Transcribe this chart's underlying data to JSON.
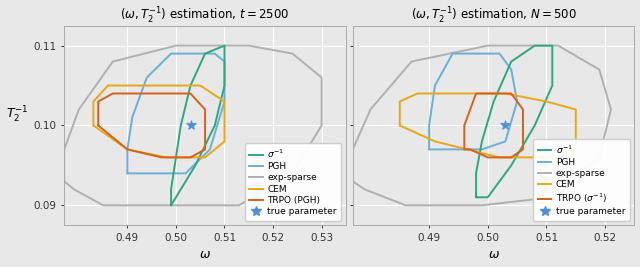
{
  "fig_width": 6.4,
  "fig_height": 2.67,
  "dpi": 100,
  "background_color": "#e8e8e8",
  "title1": "$(\\omega, T_2^{-1})$ estimation, $t = 2500$",
  "title2": "$(\\omega, T_2^{-1})$ estimation, $N = 500$",
  "xlabel": "$\\omega$",
  "ylabel": "$T_2^{-1}$",
  "xlim1": [
    0.477,
    0.535
  ],
  "ylim": [
    0.0875,
    0.1125
  ],
  "xlim2": [
    0.477,
    0.525
  ],
  "xticks1": [
    0.49,
    0.5,
    0.51,
    0.52,
    0.53
  ],
  "xticks2": [
    0.49,
    0.5,
    0.51,
    0.52
  ],
  "yticks": [
    0.09,
    0.1,
    0.11
  ],
  "true_param": [
    0.503,
    0.1
  ],
  "colors": {
    "sigma": "#2ca87f",
    "PGH": "#6baed6",
    "exp_sparse": "#b0b0b0",
    "CEM": "#e6a817",
    "TRPO": "#d4621a"
  },
  "p1_sigma_x": [
    0.499,
    0.499,
    0.5,
    0.501,
    0.503,
    0.506,
    0.51,
    0.51,
    0.508,
    0.504,
    0.5,
    0.499
  ],
  "p1_sigma_y": [
    0.09,
    0.092,
    0.096,
    0.1,
    0.105,
    0.109,
    0.11,
    0.105,
    0.1,
    0.095,
    0.091,
    0.09
  ],
  "p1_PGH_x": [
    0.49,
    0.49,
    0.491,
    0.494,
    0.499,
    0.504,
    0.508,
    0.51,
    0.51,
    0.507,
    0.502,
    0.496,
    0.491,
    0.49
  ],
  "p1_PGH_y": [
    0.094,
    0.097,
    0.101,
    0.106,
    0.109,
    0.109,
    0.109,
    0.108,
    0.103,
    0.097,
    0.094,
    0.094,
    0.094,
    0.094
  ],
  "p1_exp_x": [
    0.477,
    0.477,
    0.48,
    0.487,
    0.5,
    0.515,
    0.524,
    0.53,
    0.53,
    0.524,
    0.513,
    0.499,
    0.485,
    0.479,
    0.477
  ],
  "p1_exp_y": [
    0.093,
    0.097,
    0.102,
    0.108,
    0.11,
    0.11,
    0.109,
    0.106,
    0.1,
    0.094,
    0.09,
    0.09,
    0.09,
    0.092,
    0.093
  ],
  "p1_CEM_x": [
    0.483,
    0.483,
    0.486,
    0.491,
    0.498,
    0.505,
    0.51,
    0.51,
    0.506,
    0.498,
    0.49,
    0.483
  ],
  "p1_CEM_y": [
    0.1,
    0.103,
    0.105,
    0.105,
    0.105,
    0.105,
    0.103,
    0.098,
    0.096,
    0.096,
    0.097,
    0.1
  ],
  "p1_TRPO_x": [
    0.484,
    0.484,
    0.487,
    0.492,
    0.498,
    0.503,
    0.506,
    0.506,
    0.503,
    0.497,
    0.49,
    0.484
  ],
  "p1_TRPO_y": [
    0.1,
    0.103,
    0.104,
    0.104,
    0.104,
    0.104,
    0.102,
    0.097,
    0.096,
    0.096,
    0.097,
    0.1
  ],
  "p2_sigma_x": [
    0.498,
    0.498,
    0.499,
    0.501,
    0.504,
    0.508,
    0.511,
    0.511,
    0.508,
    0.504,
    0.5,
    0.498
  ],
  "p2_sigma_y": [
    0.091,
    0.094,
    0.098,
    0.103,
    0.108,
    0.11,
    0.11,
    0.105,
    0.1,
    0.095,
    0.091,
    0.091
  ],
  "p2_PGH_x": [
    0.49,
    0.49,
    0.491,
    0.494,
    0.498,
    0.502,
    0.504,
    0.505,
    0.503,
    0.499,
    0.493,
    0.49
  ],
  "p2_PGH_y": [
    0.097,
    0.1,
    0.105,
    0.109,
    0.109,
    0.109,
    0.107,
    0.103,
    0.098,
    0.097,
    0.097,
    0.097
  ],
  "p2_exp_x": [
    0.477,
    0.477,
    0.48,
    0.487,
    0.5,
    0.512,
    0.519,
    0.521,
    0.519,
    0.511,
    0.499,
    0.486,
    0.479,
    0.477
  ],
  "p2_exp_y": [
    0.093,
    0.097,
    0.102,
    0.108,
    0.11,
    0.11,
    0.107,
    0.102,
    0.096,
    0.091,
    0.09,
    0.09,
    0.092,
    0.093
  ],
  "p2_CEM_x": [
    0.485,
    0.485,
    0.488,
    0.495,
    0.503,
    0.51,
    0.515,
    0.515,
    0.51,
    0.502,
    0.491,
    0.485
  ],
  "p2_CEM_y": [
    0.1,
    0.103,
    0.104,
    0.104,
    0.104,
    0.103,
    0.102,
    0.097,
    0.096,
    0.096,
    0.098,
    0.1
  ],
  "p2_TRPO_x": [
    0.496,
    0.496,
    0.498,
    0.501,
    0.504,
    0.506,
    0.506,
    0.504,
    0.5,
    0.497,
    0.496
  ],
  "p2_TRPO_y": [
    0.097,
    0.1,
    0.104,
    0.104,
    0.104,
    0.102,
    0.097,
    0.096,
    0.096,
    0.097,
    0.097
  ]
}
